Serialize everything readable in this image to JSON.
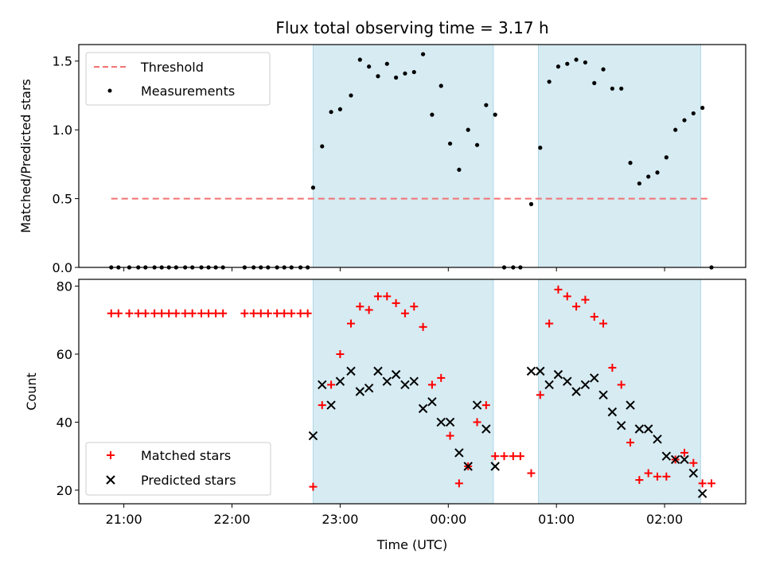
{
  "chart_data": [
    {
      "type": "scatter",
      "title": "Flux total observing time = 3.17 h",
      "xlabel": "",
      "ylabel": "Matched/Predicted stars",
      "xlim": [
        "20:35",
        "02:45"
      ],
      "ylim": [
        0,
        1.62
      ],
      "yticks": [
        0.0,
        0.5,
        1.0,
        1.5
      ],
      "ytick_labels": [
        "0.0",
        "0.5",
        "1.0",
        "1.5"
      ],
      "grid": false,
      "legend": "upper-left",
      "observing_windows": [
        [
          "22:45",
          "00:25"
        ],
        [
          "00:50",
          "02:20"
        ]
      ],
      "threshold": {
        "name": "Threshold",
        "value": 0.5,
        "x_range": [
          "20:53",
          "02:25"
        ],
        "color": "#f27272"
      },
      "series": [
        {
          "name": "Measurements",
          "marker": "dot",
          "color": "#000000",
          "points": [
            [
              "20:53",
              0
            ],
            [
              "20:57",
              0
            ],
            [
              "21:03",
              0
            ],
            [
              "21:08",
              0
            ],
            [
              "21:12",
              0
            ],
            [
              "21:17",
              0
            ],
            [
              "21:21",
              0
            ],
            [
              "21:25",
              0
            ],
            [
              "21:29",
              0
            ],
            [
              "21:34",
              0
            ],
            [
              "21:38",
              0
            ],
            [
              "21:43",
              0
            ],
            [
              "21:47",
              0
            ],
            [
              "21:51",
              0
            ],
            [
              "21:55",
              0
            ],
            [
              "22:07",
              0
            ],
            [
              "22:12",
              0
            ],
            [
              "22:16",
              0
            ],
            [
              "22:20",
              0
            ],
            [
              "22:25",
              0
            ],
            [
              "22:29",
              0
            ],
            [
              "22:33",
              0
            ],
            [
              "22:38",
              0
            ],
            [
              "22:42",
              0
            ],
            [
              "22:45",
              0.58
            ],
            [
              "22:50",
              0.88
            ],
            [
              "22:55",
              1.13
            ],
            [
              "23:00",
              1.15
            ],
            [
              "23:06",
              1.25
            ],
            [
              "23:11",
              1.51
            ],
            [
              "23:16",
              1.46
            ],
            [
              "23:21",
              1.39
            ],
            [
              "23:26",
              1.48
            ],
            [
              "23:31",
              1.38
            ],
            [
              "23:36",
              1.41
            ],
            [
              "23:41",
              1.42
            ],
            [
              "23:46",
              1.55
            ],
            [
              "23:51",
              1.11
            ],
            [
              "23:56",
              1.32
            ],
            [
              "00:01",
              0.9
            ],
            [
              "00:06",
              0.71
            ],
            [
              "00:11",
              1.0
            ],
            [
              "00:16",
              0.89
            ],
            [
              "00:21",
              1.18
            ],
            [
              "00:26",
              1.11
            ],
            [
              "00:31",
              0
            ],
            [
              "00:36",
              0
            ],
            [
              "00:40",
              0
            ],
            [
              "00:46",
              0.46
            ],
            [
              "00:51",
              0.87
            ],
            [
              "00:56",
              1.35
            ],
            [
              "01:01",
              1.46
            ],
            [
              "01:06",
              1.48
            ],
            [
              "01:11",
              1.51
            ],
            [
              "01:16",
              1.49
            ],
            [
              "01:21",
              1.34
            ],
            [
              "01:26",
              1.44
            ],
            [
              "01:31",
              1.3
            ],
            [
              "01:36",
              1.3
            ],
            [
              "01:41",
              0.76
            ],
            [
              "01:46",
              0.61
            ],
            [
              "01:51",
              0.66
            ],
            [
              "01:56",
              0.69
            ],
            [
              "02:01",
              0.8
            ],
            [
              "02:06",
              1.0
            ],
            [
              "02:11",
              1.07
            ],
            [
              "02:16",
              1.12
            ],
            [
              "02:21",
              1.16
            ],
            [
              "02:26",
              0
            ]
          ]
        }
      ]
    },
    {
      "type": "scatter",
      "title": "",
      "xlabel": "Time (UTC)",
      "ylabel": "Count",
      "xlim": [
        "20:35",
        "02:45"
      ],
      "ylim": [
        16,
        82
      ],
      "yticks": [
        20,
        40,
        60,
        80
      ],
      "ytick_labels": [
        "20",
        "40",
        "60",
        "80"
      ],
      "xticks": [
        "21:00",
        "22:00",
        "23:00",
        "00:00",
        "01:00",
        "02:00"
      ],
      "grid": false,
      "legend": "lower-left",
      "observing_windows": [
        [
          "22:45",
          "00:25"
        ],
        [
          "00:50",
          "02:20"
        ]
      ],
      "series": [
        {
          "name": "Matched stars",
          "marker": "plus",
          "color": "#ff0000",
          "points": [
            [
              "20:53",
              72
            ],
            [
              "20:57",
              72
            ],
            [
              "21:03",
              72
            ],
            [
              "21:08",
              72
            ],
            [
              "21:12",
              72
            ],
            [
              "21:17",
              72
            ],
            [
              "21:21",
              72
            ],
            [
              "21:25",
              72
            ],
            [
              "21:29",
              72
            ],
            [
              "21:34",
              72
            ],
            [
              "21:38",
              72
            ],
            [
              "21:43",
              72
            ],
            [
              "21:47",
              72
            ],
            [
              "21:51",
              72
            ],
            [
              "21:55",
              72
            ],
            [
              "22:07",
              72
            ],
            [
              "22:12",
              72
            ],
            [
              "22:16",
              72
            ],
            [
              "22:20",
              72
            ],
            [
              "22:25",
              72
            ],
            [
              "22:29",
              72
            ],
            [
              "22:33",
              72
            ],
            [
              "22:38",
              72
            ],
            [
              "22:42",
              72
            ],
            [
              "22:45",
              21
            ],
            [
              "22:50",
              45
            ],
            [
              "22:55",
              51
            ],
            [
              "23:00",
              60
            ],
            [
              "23:06",
              69
            ],
            [
              "23:11",
              74
            ],
            [
              "23:16",
              73
            ],
            [
              "23:21",
              77
            ],
            [
              "23:26",
              77
            ],
            [
              "23:31",
              75
            ],
            [
              "23:36",
              72
            ],
            [
              "23:41",
              74
            ],
            [
              "23:46",
              68
            ],
            [
              "23:51",
              51
            ],
            [
              "23:56",
              53
            ],
            [
              "00:01",
              36
            ],
            [
              "00:06",
              22
            ],
            [
              "00:11",
              27
            ],
            [
              "00:16",
              40
            ],
            [
              "00:21",
              45
            ],
            [
              "00:26",
              30
            ],
            [
              "00:31",
              30
            ],
            [
              "00:36",
              30
            ],
            [
              "00:40",
              30
            ],
            [
              "00:46",
              25
            ],
            [
              "00:51",
              48
            ],
            [
              "00:56",
              69
            ],
            [
              "01:01",
              79
            ],
            [
              "01:06",
              77
            ],
            [
              "01:11",
              74
            ],
            [
              "01:16",
              76
            ],
            [
              "01:21",
              71
            ],
            [
              "01:26",
              69
            ],
            [
              "01:31",
              56
            ],
            [
              "01:36",
              51
            ],
            [
              "01:41",
              34
            ],
            [
              "01:46",
              23
            ],
            [
              "01:51",
              25
            ],
            [
              "01:56",
              24
            ],
            [
              "02:01",
              24
            ],
            [
              "02:06",
              29
            ],
            [
              "02:11",
              31
            ],
            [
              "02:16",
              28
            ],
            [
              "02:21",
              22
            ],
            [
              "02:26",
              22
            ]
          ]
        },
        {
          "name": "Predicted stars",
          "marker": "x",
          "color": "#000000",
          "points": [
            [
              "22:45",
              36
            ],
            [
              "22:50",
              51
            ],
            [
              "22:55",
              45
            ],
            [
              "23:00",
              52
            ],
            [
              "23:06",
              55
            ],
            [
              "23:11",
              49
            ],
            [
              "23:16",
              50
            ],
            [
              "23:21",
              55
            ],
            [
              "23:26",
              52
            ],
            [
              "23:31",
              54
            ],
            [
              "23:36",
              51
            ],
            [
              "23:41",
              52
            ],
            [
              "23:46",
              44
            ],
            [
              "23:51",
              46
            ],
            [
              "23:56",
              40
            ],
            [
              "00:01",
              40
            ],
            [
              "00:06",
              31
            ],
            [
              "00:11",
              27
            ],
            [
              "00:16",
              45
            ],
            [
              "00:21",
              38
            ],
            [
              "00:26",
              27
            ],
            [
              "00:46",
              55
            ],
            [
              "00:51",
              55
            ],
            [
              "00:56",
              51
            ],
            [
              "01:01",
              54
            ],
            [
              "01:06",
              52
            ],
            [
              "01:11",
              49
            ],
            [
              "01:16",
              51
            ],
            [
              "01:21",
              53
            ],
            [
              "01:26",
              48
            ],
            [
              "01:31",
              43
            ],
            [
              "01:36",
              39
            ],
            [
              "01:41",
              45
            ],
            [
              "01:46",
              38
            ],
            [
              "01:51",
              38
            ],
            [
              "01:56",
              35
            ],
            [
              "02:01",
              30
            ],
            [
              "02:06",
              29
            ],
            [
              "02:11",
              29
            ],
            [
              "02:16",
              25
            ],
            [
              "02:21",
              19
            ]
          ]
        }
      ]
    }
  ]
}
